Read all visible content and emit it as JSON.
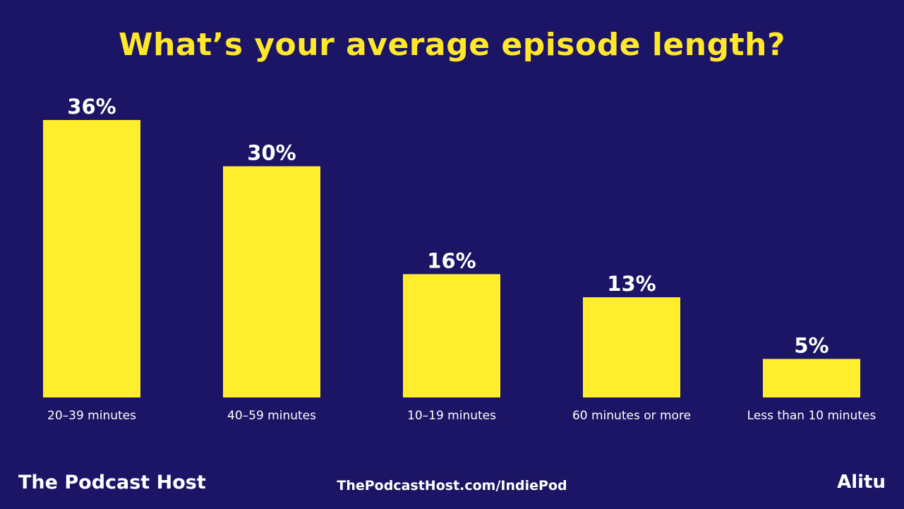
{
  "chart_data": {
    "type": "bar",
    "title": "What’s your average episode length?",
    "categories": [
      "20–39 minutes",
      "40–59 minutes",
      "10–19 minutes",
      "60 minutes or more",
      "Less than 10 minutes"
    ],
    "values": [
      36,
      30,
      16,
      13,
      5
    ],
    "data_labels": [
      "36%",
      "30%",
      "16%",
      "13%",
      "5%"
    ],
    "ylim": [
      0,
      36
    ],
    "grid": false,
    "legend": "none",
    "bar_color": "#ffee2e",
    "background": "#1c1464"
  },
  "footer": {
    "brand": "The Podcast Host",
    "url": "ThePodcastHost.com/IndiePod",
    "partner": "Alitu"
  }
}
